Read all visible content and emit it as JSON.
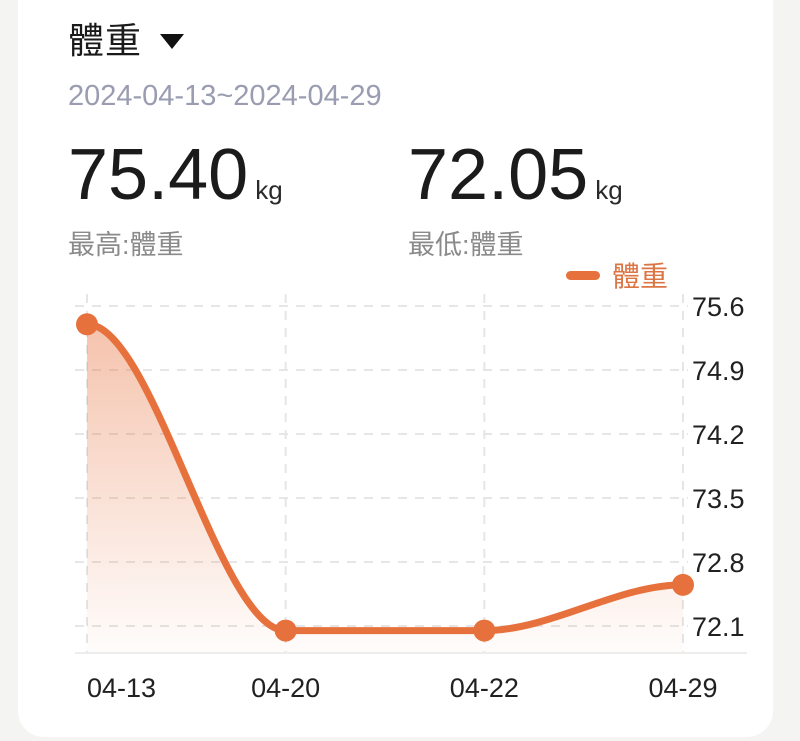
{
  "colors": {
    "accent": "#e7713c",
    "legend_text": "#dc7544",
    "grid": "#e6e6e6",
    "axis": "#ededed",
    "title_text": "#1a1a1a",
    "date_text": "#9a9cb1",
    "stat_label_text": "#8a8a8a",
    "tick_text": "#212121",
    "card_bg": "#ffffff",
    "page_bg": "#f4f4f3"
  },
  "header": {
    "title": "體重",
    "date_range": "2024-04-13~2024-04-29"
  },
  "stats": {
    "max": {
      "value": "75.40",
      "unit": "kg",
      "label": "最高:體重"
    },
    "min": {
      "value": "72.05",
      "unit": "kg",
      "label": "最低:體重"
    }
  },
  "legend": {
    "label": "體重"
  },
  "chart_data": {
    "type": "line",
    "title": "",
    "xlabel": "",
    "ylabel": "",
    "unit": "kg",
    "categories": [
      "04-13",
      "04-20",
      "04-22",
      "04-29"
    ],
    "series": [
      {
        "name": "體重",
        "values": [
          75.4,
          72.05,
          72.05,
          72.55
        ]
      }
    ],
    "yticks": [
      75.6,
      74.9,
      74.2,
      73.5,
      72.8,
      72.1
    ],
    "ylim": [
      71.8,
      75.75
    ],
    "grid": "dashed",
    "legend_position": "top-right",
    "smooth": true,
    "area_gradient": true,
    "marker": "circle"
  }
}
